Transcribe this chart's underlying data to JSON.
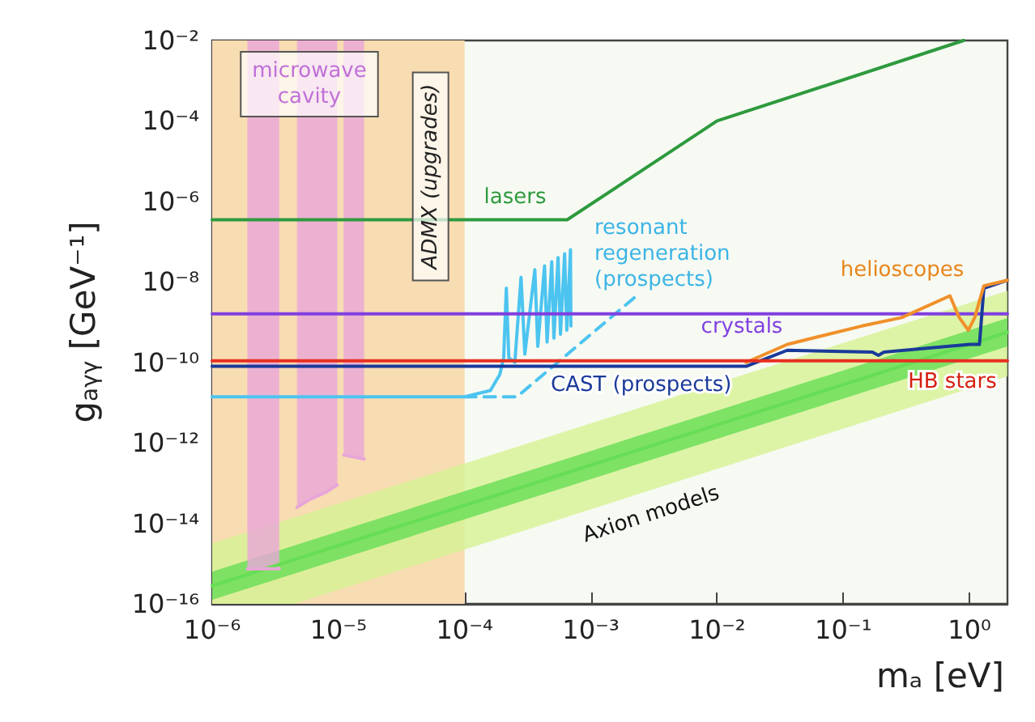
{
  "chart_data": {
    "type": "line",
    "xlabel": "mₐ [eV]",
    "ylabel": "g$_{aγγ}$ [GeV⁻¹]",
    "log": "xy",
    "grid": false,
    "marker": "none",
    "xlim": [
      1e-06,
      2
    ],
    "ylim": [
      1e-16,
      0.01
    ],
    "xticks": [
      {
        "value": 1e-06,
        "label": "10⁻⁶"
      },
      {
        "value": 1e-05,
        "label": "10⁻⁵"
      },
      {
        "value": 0.0001,
        "label": "10⁻⁴"
      },
      {
        "value": 0.001,
        "label": "10⁻³"
      },
      {
        "value": 0.01,
        "label": "10⁻²"
      },
      {
        "value": 0.1,
        "label": "10⁻¹"
      },
      {
        "value": 1,
        "label": "10⁰"
      }
    ],
    "yticks": [
      {
        "value": 1e-16,
        "label": "10⁻¹⁶"
      },
      {
        "value": 1e-15,
        "label": null
      },
      {
        "value": 1e-14,
        "label": "10⁻¹⁴"
      },
      {
        "value": 1e-13,
        "label": null
      },
      {
        "value": 1e-12,
        "label": "10⁻¹²"
      },
      {
        "value": 1e-11,
        "label": null
      },
      {
        "value": 1e-10,
        "label": "10⁻¹⁰"
      },
      {
        "value": 1e-09,
        "label": null
      },
      {
        "value": 1e-08,
        "label": "10⁻⁸"
      },
      {
        "value": 1e-07,
        "label": null
      },
      {
        "value": 1e-06,
        "label": "10⁻⁶"
      },
      {
        "value": 1e-05,
        "label": null
      },
      {
        "value": 0.0001,
        "label": "10⁻⁴"
      },
      {
        "value": 0.001,
        "label": null
      },
      {
        "value": 0.01,
        "label": "10⁻²"
      }
    ],
    "bands": [
      {
        "axis": "x",
        "from": 1e-06,
        "to": 0.0001,
        "label": "ADMX (upgrades)",
        "color": "#f8dcb2"
      }
    ],
    "series": [
      {
        "color": "#d6f294",
        "x": [
          1e-06,
          4.5e-06,
          2
        ],
        "values": [
          null,
          null,
          null
        ],
        "lower": [
          1e-16,
          1e-16,
          4.5e-11
        ],
        "upper": [
          3.2e-15,
          1.4e-14,
          6e-09
        ]
      },
      {
        "color": "#66dd55",
        "x": [
          1e-06,
          2
        ],
        "values": [
          2.8e-16,
          5.6e-10
        ],
        "lower": [
          1.26e-16,
          2.5e-10
        ],
        "upper": [
          6.3e-16,
          1.26e-09
        ]
      },
      {
        "color": "#e8a6d8",
        "x": [
          1.9e-06,
          3.4e-06
        ],
        "values": [
          7.4e-16,
          7.4e-16
        ],
        "lower": [
          7.4e-16,
          7.4e-16
        ],
        "upper": [
          0.01,
          0.01
        ]
      },
      {
        "color": "#e8a6d8",
        "x": [
          4.7e-06,
          6e-06,
          8e-06,
          9.8e-06
        ],
        "values": [
          2.5e-14,
          4e-14,
          6e-14,
          9e-14
        ],
        "lower": [
          2.5e-14,
          4e-14,
          6e-14,
          9e-14
        ],
        "upper": [
          0.01,
          0.01,
          0.01,
          0.01
        ]
      },
      {
        "color": "#e8a6d8",
        "x": [
          1.1e-05,
          1.6e-05
        ],
        "values": [
          5e-13,
          4e-13
        ],
        "lower": [
          5e-13,
          4e-13
        ],
        "upper": [
          0.01,
          0.01
        ]
      },
      {
        "color": "#2e9a3e",
        "x": [
          1e-06,
          0.00065,
          0.01,
          0.9
        ],
        "values": [
          3.5e-07,
          3.5e-07,
          0.0001,
          0.01
        ]
      },
      {
        "color": "#4cc4f0",
        "x": [
          1e-06,
          0.0001,
          0.00016,
          0.00019,
          0.000204,
          0.000214,
          0.000224,
          0.00025,
          0.00028,
          0.0003,
          0.00036,
          0.00038,
          0.00043,
          0.00045,
          0.00049,
          0.00051,
          0.00055,
          0.000575,
          0.00062,
          0.000645,
          0.00069,
          0.000695
        ],
        "values": [
          1.4e-11,
          1.4e-11,
          2e-11,
          5e-11,
          1.3e-10,
          7e-09,
          1.3e-10,
          1e-10,
          1.3e-08,
          1.6e-10,
          2e-08,
          2.5e-10,
          2.5e-08,
          3.2e-10,
          3.2e-08,
          4e-10,
          4e-08,
          5e-10,
          5e-08,
          6.3e-10,
          6.3e-08,
          8e-10
        ]
      },
      {
        "color": "#4cc4f0",
        "line_style": "dashed",
        "x": [
          0.0001,
          0.00026,
          0.0023
        ],
        "values": [
          1.4e-11,
          1.4e-11,
          4.5e-09
        ]
      },
      {
        "color": "#8040e0",
        "x": [
          1e-06,
          2
        ],
        "values": [
          1.6e-09,
          1.6e-09
        ]
      },
      {
        "color": "#1a3a9a",
        "x": [
          1e-06,
          0.017,
          0.036,
          0.17,
          0.19,
          0.21,
          1.0,
          1.2,
          1.3,
          2
        ],
        "values": [
          8e-11,
          8e-11,
          2e-10,
          1.8e-10,
          1.5e-10,
          1.8e-10,
          2.8e-10,
          2.8e-10,
          7e-09,
          1.1e-08
        ]
      },
      {
        "color": "#f0902a",
        "x": [
          0.017,
          0.036,
          0.14,
          0.29,
          0.7,
          0.83,
          0.98,
          1.1,
          1.3,
          2
        ],
        "values": [
          1e-10,
          2.8e-10,
          8e-10,
          1.3e-09,
          4.5e-09,
          1.3e-09,
          6.3e-10,
          1.3e-09,
          8e-09,
          1.1e-08
        ]
      },
      {
        "color": "#e83020",
        "x": [
          1e-06,
          2
        ],
        "values": [
          1.1e-10,
          1.1e-10
        ]
      }
    ],
    "annotations": [
      "microwave cavity",
      "lasers",
      "resonant regeneration (prospects)",
      "helioscopes",
      "crystals",
      "CAST (prospects)",
      "HB stars",
      "Axion models"
    ]
  }
}
